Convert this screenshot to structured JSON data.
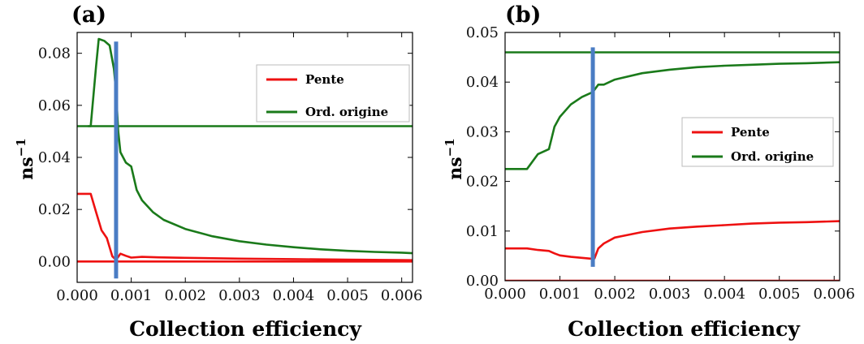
{
  "chart_data": [
    {
      "panel_label": "(a)",
      "type": "line",
      "xlabel": "Collection efficiency",
      "ylabel": "ns",
      "ylabel_exp": "−1",
      "xlim": [
        0.0,
        0.0062
      ],
      "ylim": [
        -0.008,
        0.088
      ],
      "xticks": [
        0.0,
        0.001,
        0.002,
        0.003,
        0.004,
        0.005,
        0.006
      ],
      "xtick_labels": [
        "0.000",
        "0.001",
        "0.002",
        "0.003",
        "0.004",
        "0.005",
        "0.006"
      ],
      "yticks": [
        0.0,
        0.02,
        0.04,
        0.06,
        0.08
      ],
      "ytick_labels": [
        "0.00",
        "0.02",
        "0.04",
        "0.06",
        "0.08"
      ],
      "legend": {
        "position": "upper-right",
        "entries": [
          {
            "label": "Pente",
            "color": "#ee1111"
          },
          {
            "label": "Ord. origine",
            "color": "#1a7a1a"
          }
        ]
      },
      "series": [
        {
          "name": "Pente",
          "color": "#ee1111",
          "x": [
            0.0,
            0.00025,
            0.00035,
            0.00045,
            0.00055,
            0.00065,
            0.0007,
            0.00075,
            0.0008,
            0.0009,
            0.001,
            0.0012,
            0.0015,
            0.002,
            0.003,
            0.004,
            0.005,
            0.0062
          ],
          "y": [
            0.026,
            0.026,
            0.019,
            0.012,
            0.009,
            0.002,
            0.001,
            0.0015,
            0.003,
            0.0022,
            0.0015,
            0.0018,
            0.0016,
            0.0014,
            0.0011,
            0.0009,
            0.0007,
            0.0005
          ]
        },
        {
          "name": "Pente",
          "color": "#ee1111",
          "x": [
            0.0,
            0.0062
          ],
          "y": [
            0.0,
            0.0
          ]
        },
        {
          "name": "Ord. origine",
          "color": "#1a7a1a",
          "x": [
            0.0,
            0.0062
          ],
          "y": [
            0.052,
            0.052
          ]
        },
        {
          "name": "Ord. origine",
          "color": "#1a7a1a",
          "x": [
            0.0002,
            0.00025,
            0.00035,
            0.0004,
            0.0005,
            0.0006,
            0.00068,
            0.00072,
            0.00076,
            0.0008,
            0.0009,
            0.001,
            0.0011,
            0.0012,
            0.0014,
            0.0016,
            0.002,
            0.0025,
            0.003,
            0.0035,
            0.004,
            0.0045,
            0.005,
            0.0055,
            0.006,
            0.0062
          ],
          "y": [
            0.052,
            0.052,
            0.075,
            0.0855,
            0.0848,
            0.083,
            0.074,
            0.065,
            0.05,
            0.042,
            0.038,
            0.0365,
            0.0275,
            0.0235,
            0.019,
            0.016,
            0.0125,
            0.0097,
            0.0078,
            0.0065,
            0.0055,
            0.0047,
            0.0041,
            0.0037,
            0.0034,
            0.0032
          ]
        }
      ],
      "vline": {
        "x": 0.00072,
        "y": [
          -0.0065,
          0.0845
        ],
        "color": "#4a7cc4"
      }
    },
    {
      "panel_label": "(b)",
      "type": "line",
      "xlabel": "Collection efficiency",
      "ylabel": "ns",
      "ylabel_exp": "−1",
      "xlim": [
        0.0,
        0.0061
      ],
      "ylim": [
        0.0,
        0.05
      ],
      "xticks": [
        0.0,
        0.001,
        0.002,
        0.003,
        0.004,
        0.005,
        0.006
      ],
      "xtick_labels": [
        "0.000",
        "0.001",
        "0.002",
        "0.003",
        "0.004",
        "0.005",
        "0.006"
      ],
      "yticks": [
        0.0,
        0.01,
        0.02,
        0.03,
        0.04,
        0.05
      ],
      "ytick_labels": [
        "0.00",
        "0.01",
        "0.02",
        "0.03",
        "0.04",
        "0.05"
      ],
      "legend": {
        "position": "right",
        "entries": [
          {
            "label": "Pente",
            "color": "#ee1111"
          },
          {
            "label": "Ord. origine",
            "color": "#1a7a1a"
          }
        ]
      },
      "series": [
        {
          "name": "Pente",
          "color": "#ee1111",
          "x": [
            0.0,
            0.0004,
            0.0006,
            0.0008,
            0.0009,
            0.001,
            0.0012,
            0.0014,
            0.0016,
            0.00163,
            0.0017,
            0.0018,
            0.002,
            0.0025,
            0.003,
            0.0035,
            0.004,
            0.0045,
            0.005,
            0.0055,
            0.0061
          ],
          "y": [
            0.0065,
            0.0065,
            0.0062,
            0.006,
            0.0055,
            0.0051,
            0.0048,
            0.0046,
            0.0044,
            0.0045,
            0.0065,
            0.0075,
            0.0087,
            0.0098,
            0.0105,
            0.0109,
            0.0112,
            0.0115,
            0.0117,
            0.0118,
            0.012
          ]
        },
        {
          "name": "Pente",
          "color": "#ee1111",
          "x": [
            0.0,
            0.0061
          ],
          "y": [
            0.0,
            0.0
          ]
        },
        {
          "name": "Ord. origine",
          "color": "#1a7a1a",
          "x": [
            0.0,
            0.0061
          ],
          "y": [
            0.046,
            0.046
          ]
        },
        {
          "name": "Ord. origine",
          "color": "#1a7a1a",
          "x": [
            0.0,
            0.0004,
            0.0006,
            0.0008,
            0.0009,
            0.001,
            0.0012,
            0.0014,
            0.0016,
            0.0017,
            0.0018,
            0.002,
            0.0025,
            0.003,
            0.0035,
            0.004,
            0.0045,
            0.005,
            0.0055,
            0.0061
          ],
          "y": [
            0.0225,
            0.0225,
            0.0255,
            0.0265,
            0.031,
            0.033,
            0.0355,
            0.037,
            0.038,
            0.0395,
            0.0395,
            0.0405,
            0.0418,
            0.0425,
            0.043,
            0.0433,
            0.0435,
            0.0437,
            0.0438,
            0.044
          ]
        }
      ],
      "vline": {
        "x": 0.0016,
        "y": [
          0.0028,
          0.047
        ],
        "color": "#4a7cc4"
      }
    }
  ]
}
